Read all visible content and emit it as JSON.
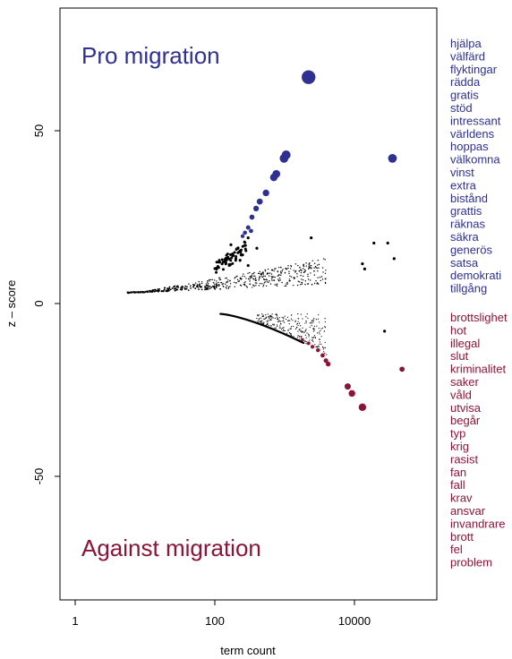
{
  "chart_data": {
    "type": "scatter",
    "title": "",
    "xlabel": "term count",
    "ylabel": "z – score",
    "xscale": "log",
    "xlim": [
      1,
      100000
    ],
    "ylim": [
      -87,
      87
    ],
    "x_ticks": [
      1,
      100,
      10000
    ],
    "x_tick_labels": [
      "1",
      "100",
      "10000"
    ],
    "y_ticks": [
      -50,
      0,
      50
    ],
    "y_tick_labels": [
      "-50",
      "0",
      "50"
    ],
    "grid": false,
    "legend": "none",
    "colors": {
      "pro": "#2e3192",
      "against": "#8b1538",
      "neutral": "#000000"
    },
    "annotations": [
      {
        "text": "Pro migration",
        "color": "#2e3192",
        "placement": "top-left"
      },
      {
        "text": "Against migration",
        "color": "#8b1538",
        "placement": "bottom-left"
      }
    ],
    "pro_words": [
      "hjälpa",
      "välfärd",
      "flyktingar",
      "rädda",
      "gratis",
      "stöd",
      "intressant",
      "världens",
      "hoppas",
      "välkomna",
      "vinst",
      "extra",
      "bistånd",
      "grattis",
      "räknas",
      "säkra",
      "generös",
      "satsa",
      "demokrati",
      "tillgång"
    ],
    "against_words": [
      "brottslighet",
      "hot",
      "illegal",
      "slut",
      "kriminalitet",
      "saker",
      "våld",
      "utvisa",
      "begår",
      "typ",
      "krig",
      "rasist",
      "fan",
      "fall",
      "krav",
      "ansvar",
      "invandrare",
      "brott",
      "fel",
      "problem"
    ],
    "highlighted_pro_points": [
      {
        "x": 2200,
        "y": 65.5
      },
      {
        "x": 35000,
        "y": 42
      },
      {
        "x": 1050,
        "y": 43
      },
      {
        "x": 980,
        "y": 42
      },
      {
        "x": 760,
        "y": 37.5
      },
      {
        "x": 700,
        "y": 36.5
      },
      {
        "x": 540,
        "y": 32
      },
      {
        "x": 440,
        "y": 29.5
      },
      {
        "x": 390,
        "y": 27.5
      },
      {
        "x": 340,
        "y": 25
      },
      {
        "x": 300,
        "y": 22
      },
      {
        "x": 270,
        "y": 20.5
      },
      {
        "x": 250,
        "y": 19.5
      },
      {
        "x": 330,
        "y": 21
      }
    ],
    "highlighted_against_points": [
      {
        "x": 13000,
        "y": -30
      },
      {
        "x": 9200,
        "y": -26
      },
      {
        "x": 8000,
        "y": -24
      },
      {
        "x": 4200,
        "y": -17.5
      },
      {
        "x": 3900,
        "y": -16.5
      },
      {
        "x": 3500,
        "y": -15
      },
      {
        "x": 3000,
        "y": -13.5
      },
      {
        "x": 2500,
        "y": -12.5
      },
      {
        "x": 2200,
        "y": -11.5
      },
      {
        "x": 1800,
        "y": -10.5
      },
      {
        "x": 48000,
        "y": -19
      }
    ],
    "neutral_outlier_points": [
      {
        "x": 2400,
        "y": 19
      },
      {
        "x": 19000,
        "y": 17.5
      },
      {
        "x": 30000,
        "y": 17.5
      },
      {
        "x": 37000,
        "y": 13
      },
      {
        "x": 300,
        "y": 19
      },
      {
        "x": 170,
        "y": 17
      },
      {
        "x": 180,
        "y": 14
      },
      {
        "x": 200,
        "y": 13
      },
      {
        "x": 230,
        "y": 12.5
      },
      {
        "x": 400,
        "y": 16
      },
      {
        "x": 300,
        "y": 11
      },
      {
        "x": 13000,
        "y": 11.5
      },
      {
        "x": 14000,
        "y": 10
      },
      {
        "x": 27000,
        "y": -8
      }
    ],
    "bulk_points_description_upper": "dense band of small points from x≈6 to x≈4000 with z from 3 to ≈13, rising toward larger counts",
    "bulk_points_description_lower": "dense band of small points from x≈120 to x≈3500 with z from -3 down to ≈-12"
  }
}
